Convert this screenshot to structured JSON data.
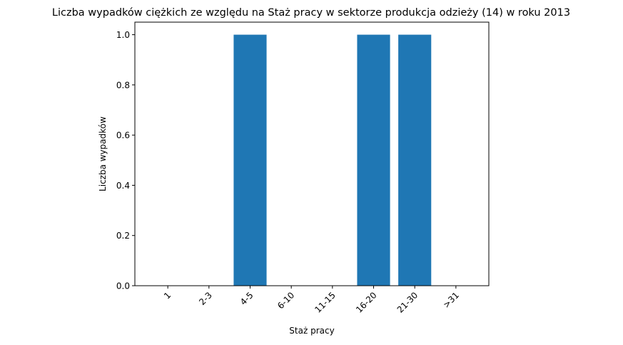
{
  "chart_data": {
    "type": "bar",
    "title": "Liczba wypadków ciężkich ze względu na Staż pracy w sektorze produkcja odzieży  (14)   w roku 2013",
    "xlabel": "Staż pracy",
    "ylabel": "Liczba wypadków",
    "categories": [
      "1",
      "2-3",
      "4-5",
      "6-10",
      "11-15",
      "16-20",
      "21-30",
      ">31"
    ],
    "values": [
      0,
      0,
      1,
      0,
      0,
      1,
      1,
      0
    ],
    "ylim": [
      0,
      1.05
    ],
    "yticks": [
      "0.0",
      "0.2",
      "0.4",
      "0.6",
      "0.8",
      "1.0"
    ],
    "bar_color": "#1f77b4",
    "grid": false,
    "legend": "none"
  }
}
